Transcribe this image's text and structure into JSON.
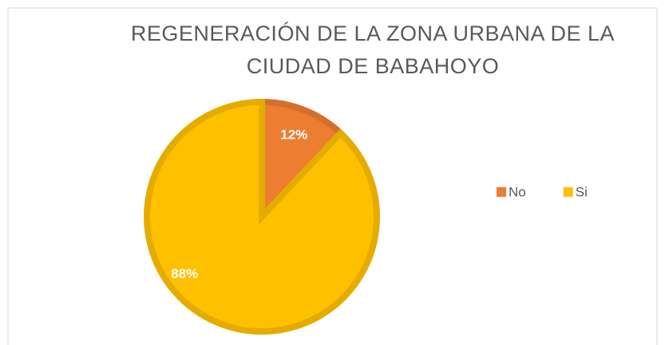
{
  "chart_data": {
    "type": "pie",
    "title": "REGENERACIÓN DE LA ZONA URBANA DE LA CIUDAD DE BABAHOYO",
    "categories": [
      "No",
      "Si"
    ],
    "values": [
      12,
      88
    ],
    "value_labels": [
      "12%",
      "88%"
    ],
    "colors": [
      "#ED7D31",
      "#FFC000"
    ],
    "legend": "right"
  }
}
